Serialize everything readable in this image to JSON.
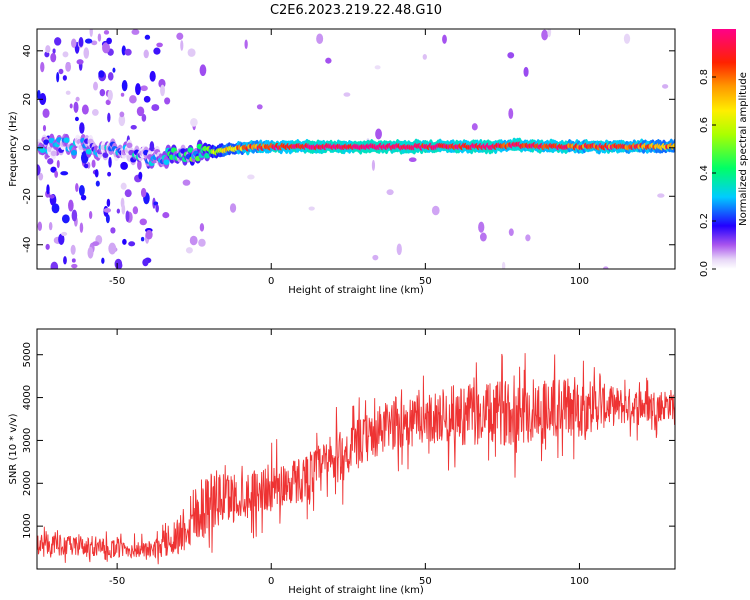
{
  "figure_title": "C2E6.2023.219.22.48.G10",
  "chart_data": [
    {
      "type": "heatmap",
      "xlabel": "Height of straight line (km)",
      "ylabel": "Frequency (Hz)",
      "xlim": [
        -76,
        131
      ],
      "ylim": [
        -50,
        49
      ],
      "xticks": [
        -50,
        0,
        50,
        100
      ],
      "yticks": [
        -40,
        -20,
        0,
        20,
        40
      ],
      "colorbar": {
        "label": "Normalized spectral amplitude",
        "range": [
          0,
          1
        ],
        "ticks": [
          0.0,
          0.2,
          0.4,
          0.6,
          0.8
        ]
      },
      "ridge": {
        "x": [
          -76,
          -60,
          -45,
          -38,
          -30,
          -20,
          -10,
          0,
          10,
          20,
          30,
          40,
          50,
          60,
          70,
          80,
          90,
          100,
          110,
          120,
          131
        ],
        "freq": [
          1,
          0,
          -2,
          -4,
          -3,
          -2,
          0,
          0.5,
          0.5,
          0.5,
          0.5,
          0.5,
          0.5,
          0.5,
          0.5,
          1,
          0.5,
          0.5,
          0.5,
          0.5,
          0.5
        ],
        "amplitude": [
          0.15,
          0.15,
          0.2,
          0.25,
          0.3,
          0.5,
          0.75,
          0.9,
          0.95,
          1.0,
          1.0,
          1.0,
          0.95,
          0.95,
          0.95,
          0.9,
          0.9,
          0.85,
          0.85,
          0.8,
          0.8
        ]
      },
      "grid": false
    },
    {
      "type": "line",
      "xlabel": "Height of straight line (km)",
      "ylabel": "SNR (10 * v/v)",
      "xlim": [
        -76,
        131
      ],
      "ylim": [
        0,
        5600
      ],
      "xticks": [
        -50,
        0,
        50,
        100
      ],
      "yticks": [
        1000,
        2000,
        3000,
        4000,
        5000
      ],
      "series": [
        {
          "color": "#ee3333",
          "envelope": {
            "x": [
              -76,
              -60,
              -45,
              -38,
              -30,
              -25,
              -20,
              -10,
              0,
              10,
              20,
              30,
              40,
              50,
              60,
              70,
              80,
              90,
              100,
              110,
              120,
              131
            ],
            "mean": [
              600,
              500,
              450,
              450,
              800,
              1300,
              1600,
              1700,
              1900,
              2100,
              2500,
              3000,
              3400,
              3500,
              3600,
              3600,
              3700,
              3700,
              3800,
              3800,
              3800,
              3850
            ],
            "spread": [
              300,
              300,
              250,
              250,
              600,
              1000,
              900,
              700,
              700,
              700,
              800,
              700,
              800,
              700,
              900,
              900,
              1000,
              1000,
              900,
              600,
              500,
              450
            ]
          }
        }
      ],
      "grid": false
    }
  ]
}
